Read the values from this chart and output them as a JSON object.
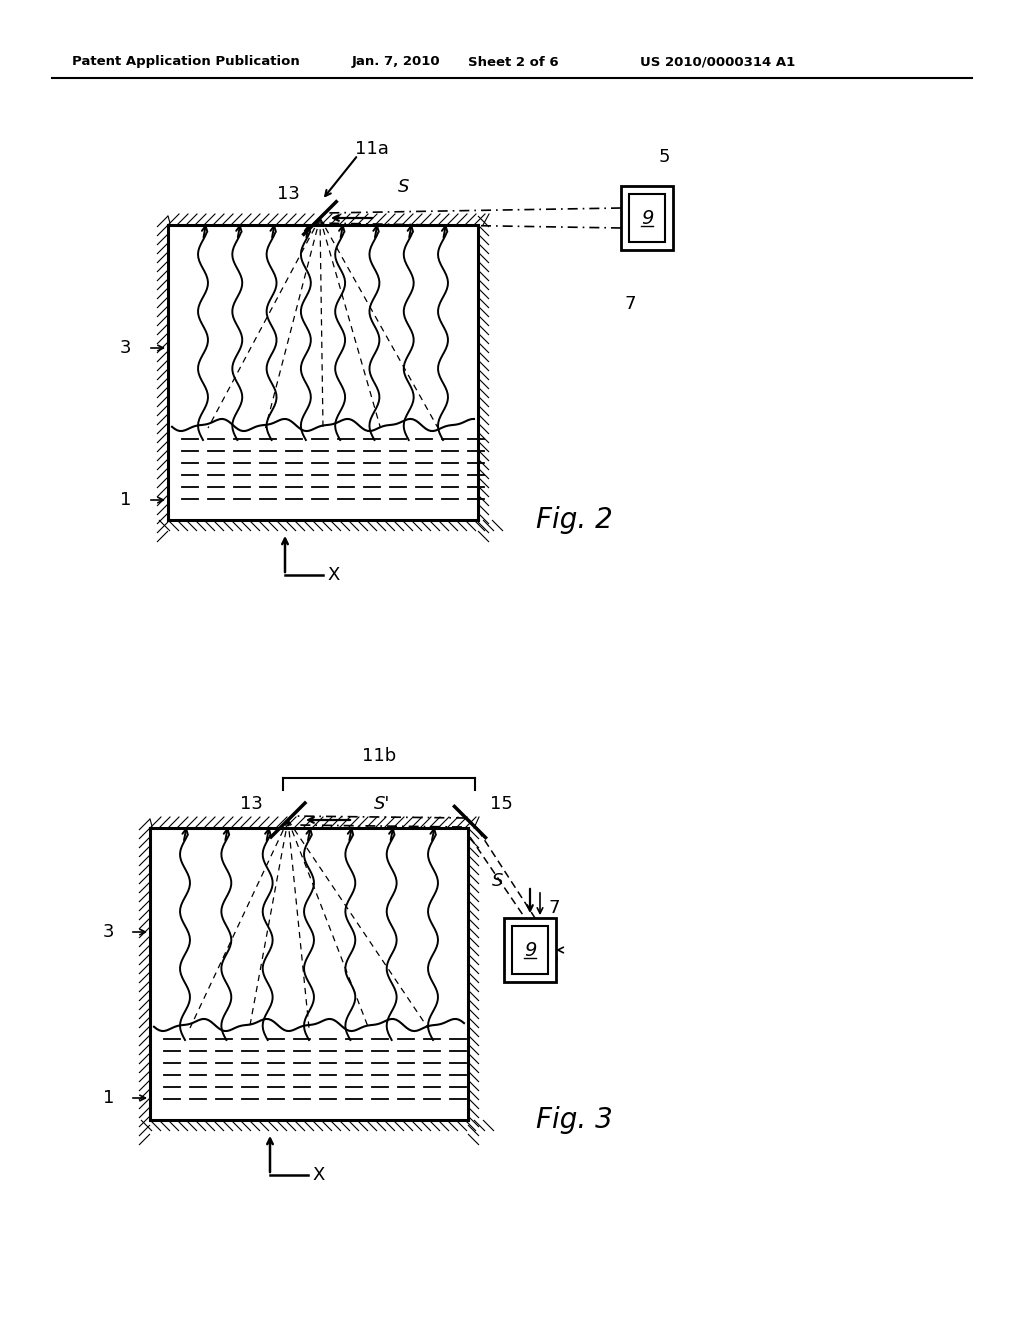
{
  "bg_color": "#ffffff",
  "header_text": "Patent Application Publication",
  "header_date": "Jan. 7, 2010",
  "header_sheet": "Sheet 2 of 6",
  "header_patent": "US 2010/0000314 A1",
  "fig2_label": "Fig. 2",
  "fig3_label": "Fig. 3"
}
